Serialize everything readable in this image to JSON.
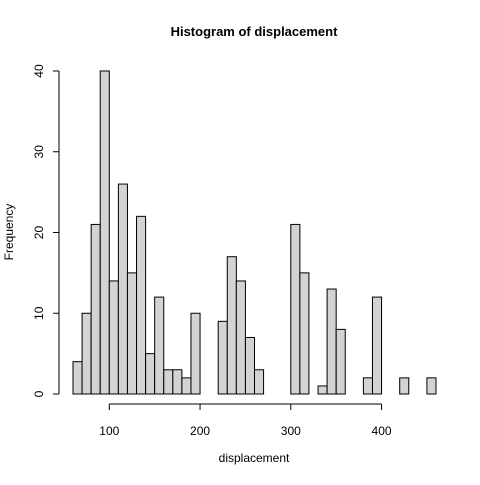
{
  "chart_data": {
    "type": "bar",
    "title": "Histogram of displacement",
    "xlabel": "displacement",
    "ylabel": "Frequency",
    "xlim": [
      60,
      460
    ],
    "ylim": [
      0,
      40
    ],
    "bin_width": 10,
    "bins": [
      {
        "start": 60,
        "end": 70,
        "count": 4
      },
      {
        "start": 70,
        "end": 80,
        "count": 10
      },
      {
        "start": 80,
        "end": 90,
        "count": 21
      },
      {
        "start": 90,
        "end": 100,
        "count": 40
      },
      {
        "start": 100,
        "end": 110,
        "count": 14
      },
      {
        "start": 110,
        "end": 120,
        "count": 26
      },
      {
        "start": 120,
        "end": 130,
        "count": 15
      },
      {
        "start": 130,
        "end": 140,
        "count": 22
      },
      {
        "start": 140,
        "end": 150,
        "count": 5
      },
      {
        "start": 150,
        "end": 160,
        "count": 12
      },
      {
        "start": 160,
        "end": 170,
        "count": 3
      },
      {
        "start": 170,
        "end": 180,
        "count": 3
      },
      {
        "start": 180,
        "end": 190,
        "count": 2
      },
      {
        "start": 190,
        "end": 200,
        "count": 10
      },
      {
        "start": 200,
        "end": 210,
        "count": 0
      },
      {
        "start": 210,
        "end": 220,
        "count": 0
      },
      {
        "start": 220,
        "end": 230,
        "count": 9
      },
      {
        "start": 230,
        "end": 240,
        "count": 17
      },
      {
        "start": 240,
        "end": 250,
        "count": 14
      },
      {
        "start": 250,
        "end": 260,
        "count": 7
      },
      {
        "start": 260,
        "end": 270,
        "count": 3
      },
      {
        "start": 270,
        "end": 280,
        "count": 0
      },
      {
        "start": 280,
        "end": 290,
        "count": 0
      },
      {
        "start": 290,
        "end": 300,
        "count": 0
      },
      {
        "start": 300,
        "end": 310,
        "count": 21
      },
      {
        "start": 310,
        "end": 320,
        "count": 15
      },
      {
        "start": 320,
        "end": 330,
        "count": 0
      },
      {
        "start": 330,
        "end": 340,
        "count": 1
      },
      {
        "start": 340,
        "end": 350,
        "count": 13
      },
      {
        "start": 350,
        "end": 360,
        "count": 8
      },
      {
        "start": 360,
        "end": 370,
        "count": 0
      },
      {
        "start": 370,
        "end": 380,
        "count": 0
      },
      {
        "start": 380,
        "end": 390,
        "count": 2
      },
      {
        "start": 390,
        "end": 400,
        "count": 12
      },
      {
        "start": 400,
        "end": 410,
        "count": 0
      },
      {
        "start": 410,
        "end": 420,
        "count": 0
      },
      {
        "start": 420,
        "end": 430,
        "count": 2
      },
      {
        "start": 430,
        "end": 440,
        "count": 0
      },
      {
        "start": 440,
        "end": 450,
        "count": 0
      },
      {
        "start": 450,
        "end": 460,
        "count": 2
      }
    ],
    "x_ticks": [
      100,
      200,
      300,
      400
    ],
    "y_ticks": [
      0,
      10,
      20,
      30,
      40
    ],
    "grid": false,
    "legend": "none"
  }
}
